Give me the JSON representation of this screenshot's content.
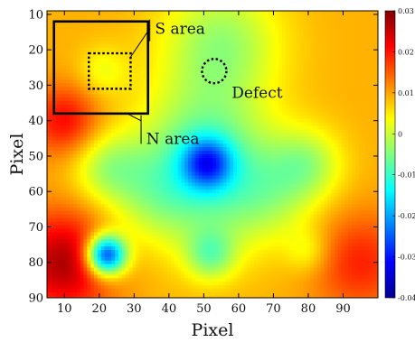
{
  "chart_data": {
    "type": "heatmap",
    "title": "",
    "xlabel": "Pixel",
    "ylabel": "Pixel",
    "xlim": [
      5,
      100
    ],
    "ylim": [
      90,
      9
    ],
    "x_ticks": [
      10,
      20,
      30,
      40,
      50,
      60,
      70,
      80,
      90
    ],
    "y_ticks": [
      10,
      20,
      30,
      40,
      50,
      60,
      70,
      80,
      90
    ],
    "colorbar": {
      "colormap": "jet",
      "range": [
        -0.04,
        0.03
      ],
      "ticks": [
        0.03,
        0.02,
        0.01,
        0,
        -0.01,
        -0.02,
        -0.03,
        -0.04
      ],
      "tick_labels": [
        "0.03",
        "0.02",
        "0.01",
        "0",
        "-0.01",
        "-0.02",
        "-0.03",
        "-0.04"
      ]
    },
    "field": {
      "background_value": 0.009,
      "features": [
        {
          "x": 55,
          "y": 18,
          "amp": -0.012,
          "sigma": 12
        },
        {
          "x": 50,
          "y": 45,
          "amp": -0.01,
          "sigma": 13
        },
        {
          "x": 52,
          "y": 60,
          "amp": -0.01,
          "sigma": 13
        },
        {
          "x": 35,
          "y": 60,
          "amp": -0.008,
          "sigma": 10
        },
        {
          "x": 70,
          "y": 60,
          "amp": -0.008,
          "sigma": 10
        },
        {
          "x": 22,
          "y": 53,
          "amp": -0.009,
          "sigma": 7
        },
        {
          "x": 80,
          "y": 52,
          "amp": -0.009,
          "sigma": 7
        },
        {
          "x": 51,
          "y": 52,
          "amp": -0.022,
          "sigma": 5
        },
        {
          "x": 22,
          "y": 78,
          "amp": -0.04,
          "sigma": 4
        },
        {
          "x": 52,
          "y": 78,
          "amp": -0.012,
          "sigma": 5
        },
        {
          "x": 80,
          "y": 77,
          "amp": -0.006,
          "sigma": 4.5
        },
        {
          "x": 21,
          "y": 26,
          "amp": -0.006,
          "sigma": 5
        },
        {
          "x": 10,
          "y": 40,
          "amp": 0.012,
          "sigma": 7
        },
        {
          "x": 10,
          "y": 80,
          "amp": 0.018,
          "sigma": 10
        },
        {
          "x": 95,
          "y": 80,
          "amp": 0.01,
          "sigma": 10
        }
      ]
    },
    "annotations": [
      {
        "type": "rect",
        "label": "S area",
        "x": [
          17,
          29
        ],
        "y": [
          21,
          31
        ],
        "style": "dotted",
        "label_x": 39,
        "label_y": 14
      },
      {
        "type": "rect",
        "label": "N area",
        "x": [
          7,
          34
        ],
        "y": [
          12,
          38
        ],
        "style": "solid",
        "label_x": 37,
        "label_y": 45
      },
      {
        "type": "circle",
        "label": "Defect",
        "x": 53,
        "y": 26,
        "r": 3.5,
        "style": "dotted",
        "label_x": 62,
        "label_y": 32
      }
    ]
  }
}
